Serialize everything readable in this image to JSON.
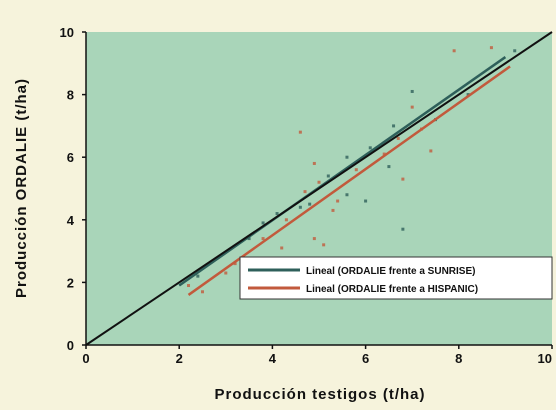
{
  "chart_data": {
    "type": "scatter",
    "title": "",
    "xlabel": "Producción testigos (t/ha)",
    "ylabel": "Producción ORDALIE (t/ha)",
    "xlim": [
      0,
      10
    ],
    "ylim": [
      0,
      10
    ],
    "x_ticks": [
      "0",
      "2",
      "4",
      "6",
      "8",
      "10"
    ],
    "y_ticks": [
      "0",
      "2",
      "4",
      "6",
      "8",
      "10"
    ],
    "grid": false,
    "legend_position": "bottom-right",
    "colors": {
      "plot_background": "#a9d5b9",
      "page_background": "#f6f3dc",
      "series_green": "#2e5f5a",
      "series_red": "#c25a3c",
      "identity_line": "#111111"
    },
    "series": [
      {
        "name": "Lineal (ORDALIE frente a SUNRISE)",
        "kind": "trendline",
        "color": "#2e5f5a",
        "points": [
          [
            2.0,
            1.9
          ],
          [
            9.0,
            9.2
          ]
        ]
      },
      {
        "name": "Lineal (ORDALIE frente a HISPANIC)",
        "kind": "trendline",
        "color": "#c25a3c",
        "points": [
          [
            2.2,
            1.6
          ],
          [
            9.1,
            8.9
          ]
        ]
      },
      {
        "name": "",
        "kind": "reference",
        "color": "#111111",
        "points": [
          [
            0,
            0
          ],
          [
            10,
            10
          ]
        ]
      },
      {
        "name": "",
        "kind": "scatter",
        "color": "#c25a3c",
        "points": [
          [
            2.2,
            1.9
          ],
          [
            2.5,
            1.7
          ],
          [
            3.2,
            2.6
          ],
          [
            3.8,
            3.4
          ],
          [
            4.2,
            3.1
          ],
          [
            4.3,
            4.0
          ],
          [
            4.6,
            6.8
          ],
          [
            4.7,
            4.9
          ],
          [
            4.9,
            3.4
          ],
          [
            5.0,
            5.2
          ],
          [
            5.1,
            3.2
          ],
          [
            5.4,
            4.6
          ],
          [
            5.8,
            5.6
          ],
          [
            6.4,
            6.1
          ],
          [
            6.7,
            6.6
          ],
          [
            7.0,
            7.6
          ],
          [
            7.2,
            6.9
          ],
          [
            7.4,
            6.2
          ],
          [
            7.9,
            9.4
          ],
          [
            8.7,
            9.5
          ],
          [
            3.0,
            2.3
          ],
          [
            4.9,
            5.8
          ],
          [
            6.8,
            5.3
          ],
          [
            5.3,
            4.3
          ]
        ]
      },
      {
        "name": "",
        "kind": "scatter",
        "color": "#2e5f5a",
        "points": [
          [
            2.4,
            2.2
          ],
          [
            3.5,
            3.4
          ],
          [
            4.1,
            4.2
          ],
          [
            4.6,
            4.4
          ],
          [
            5.2,
            5.4
          ],
          [
            5.6,
            4.8
          ],
          [
            6.0,
            4.6
          ],
          [
            6.5,
            5.7
          ],
          [
            6.8,
            3.7
          ],
          [
            6.6,
            7.0
          ],
          [
            7.5,
            7.2
          ],
          [
            8.2,
            8.0
          ],
          [
            9.2,
            9.4
          ],
          [
            7.0,
            8.1
          ],
          [
            5.6,
            6.0
          ],
          [
            6.1,
            6.3
          ],
          [
            4.8,
            4.5
          ],
          [
            3.8,
            3.9
          ]
        ]
      }
    ]
  }
}
